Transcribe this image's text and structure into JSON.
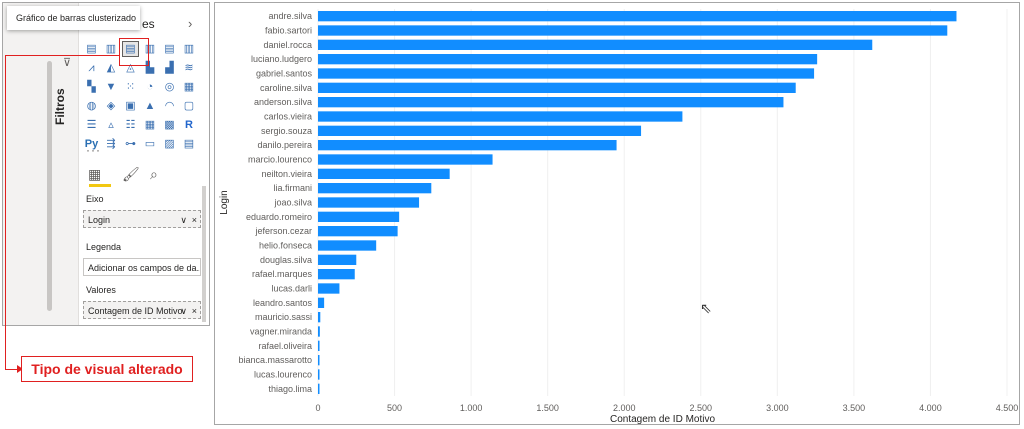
{
  "visual_picker": {
    "tooltip": "Gráfico de barras clusterizado",
    "header_tail": "es",
    "chevron": "›",
    "filters_label": "Filtros",
    "funnel_icon": "⊽",
    "more": "···",
    "icons": [
      {
        "name": "stacked-bar-icon",
        "glyph": "▤"
      },
      {
        "name": "stacked-column-icon",
        "glyph": "▥"
      },
      {
        "name": "clustered-bar-icon",
        "glyph": "▤",
        "selected": true
      },
      {
        "name": "clustered-column-icon",
        "glyph": "▥"
      },
      {
        "name": "100-stacked-bar-icon",
        "glyph": "▤"
      },
      {
        "name": "100-stacked-column-icon",
        "glyph": "▥"
      },
      {
        "name": "line-chart-icon",
        "glyph": "⩘"
      },
      {
        "name": "area-chart-icon",
        "glyph": "◭"
      },
      {
        "name": "stacked-area-icon",
        "glyph": "◬"
      },
      {
        "name": "line-column-icon",
        "glyph": "▙"
      },
      {
        "name": "line-stacked-column-icon",
        "glyph": "▟"
      },
      {
        "name": "ribbon-chart-icon",
        "glyph": "≋"
      },
      {
        "name": "waterfall-icon",
        "glyph": "▚"
      },
      {
        "name": "funnel-icon",
        "glyph": "▼"
      },
      {
        "name": "scatter-icon",
        "glyph": "⁙"
      },
      {
        "name": "pie-icon",
        "glyph": "◔"
      },
      {
        "name": "donut-icon",
        "glyph": "◎"
      },
      {
        "name": "treemap-icon",
        "glyph": "▦"
      },
      {
        "name": "map-icon",
        "glyph": "◍"
      },
      {
        "name": "filled-map-icon",
        "glyph": "◈"
      },
      {
        "name": "shape-map-icon",
        "glyph": "▣"
      },
      {
        "name": "azure-map-icon",
        "glyph": "▲"
      },
      {
        "name": "gauge-icon",
        "glyph": "◠"
      },
      {
        "name": "card-icon",
        "glyph": "▢"
      },
      {
        "name": "multirow-card-icon",
        "glyph": "☰"
      },
      {
        "name": "kpi-icon",
        "glyph": "▵"
      },
      {
        "name": "slicer-icon",
        "glyph": "☷"
      },
      {
        "name": "table-icon",
        "glyph": "▦"
      },
      {
        "name": "matrix-icon",
        "glyph": "▩"
      },
      {
        "name": "r-visual-icon",
        "glyph": "R",
        "cls": "r"
      },
      {
        "name": "python-visual-icon",
        "glyph": "Py",
        "cls": "py"
      },
      {
        "name": "key-influencers-icon",
        "glyph": "⇶"
      },
      {
        "name": "decomposition-tree-icon",
        "glyph": "⊶"
      },
      {
        "name": "qa-icon",
        "glyph": "▭"
      },
      {
        "name": "smart-narrative-icon",
        "glyph": "▨"
      },
      {
        "name": "paginated-report-icon",
        "glyph": "▤"
      }
    ]
  },
  "fields_pane": {
    "tabs": [
      {
        "name": "fields-tab-icon",
        "glyph": "▦"
      },
      {
        "name": "format-tab-icon",
        "glyph": "🖌"
      },
      {
        "name": "analytics-tab-icon",
        "glyph": "⌕"
      }
    ],
    "axis_label": "Eixo",
    "axis_value": "Login",
    "legend_label": "Legenda",
    "legend_placeholder": "Adicionar os campos de da...",
    "values_label": "Valores",
    "values_value": "Contagem de ID Motivo",
    "chevron": "∨",
    "close": "×"
  },
  "annotation": {
    "text": "Tipo de visual alterado",
    "color": "#e02020"
  },
  "cursor_glyph": "⇖",
  "chart_data": {
    "type": "bar",
    "orientation": "horizontal",
    "xlabel": "Contagem de ID Motivo",
    "ylabel": "Login",
    "bar_color": "#118dff",
    "xlim": [
      0,
      4500
    ],
    "xticks": [
      0,
      500,
      1000,
      1500,
      2000,
      2500,
      3000,
      3500,
      4000,
      4500
    ],
    "xtick_labels": [
      "0",
      "500",
      "1.000",
      "1.500",
      "2.000",
      "2.500",
      "3.000",
      "3.500",
      "4.000",
      "4.500"
    ],
    "grid": true,
    "categories": [
      "andre.silva",
      "fabio.sartori",
      "daniel.rocca",
      "luciano.ludgero",
      "gabriel.santos",
      "caroline.silva",
      "anderson.silva",
      "carlos.vieira",
      "sergio.souza",
      "danilo.pereira",
      "marcio.lourenco",
      "neilton.vieira",
      "lia.firmani",
      "joao.silva",
      "eduardo.romeiro",
      "jeferson.cezar",
      "helio.fonseca",
      "douglas.silva",
      "rafael.marques",
      "lucas.darli",
      "leandro.santos",
      "mauricio.sassi",
      "vagner.miranda",
      "rafael.oliveira",
      "bianca.massarotto",
      "lucas.lourenco",
      "thiago.lima"
    ],
    "values": [
      4170,
      4110,
      3620,
      3260,
      3240,
      3120,
      3040,
      2380,
      2110,
      1950,
      1140,
      860,
      740,
      660,
      530,
      520,
      380,
      250,
      240,
      140,
      40,
      15,
      12,
      10,
      8,
      6,
      5
    ]
  }
}
